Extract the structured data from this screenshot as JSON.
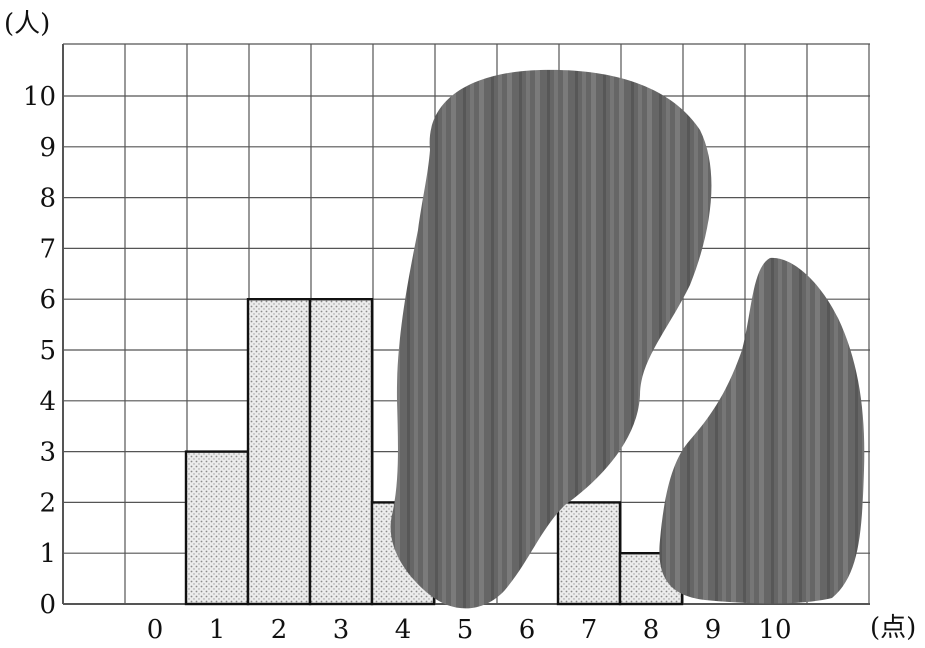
{
  "chart_data": {
    "type": "bar",
    "ylabel": "(人)",
    "xlabel": "(点)",
    "categories": [
      "0",
      "1",
      "2",
      "3",
      "4",
      "5",
      "6",
      "7",
      "8",
      "9",
      "10"
    ],
    "values": [
      0,
      3,
      6,
      6,
      2,
      null,
      null,
      2,
      1,
      null,
      null
    ],
    "hidden_categories": [
      "5",
      "6",
      "9",
      "10"
    ],
    "y_ticks": [
      "0",
      "1",
      "2",
      "3",
      "4",
      "5",
      "6",
      "7",
      "8",
      "9",
      "10"
    ],
    "ylim": [
      0,
      11
    ],
    "grid": true,
    "colors": {
      "bar_fill": "#e9e9e9",
      "bar_dots": "#8a8a8a",
      "bar_stroke": "#111111",
      "grid": "#555555",
      "ink_blot": "#666666",
      "ink_streak": "#7a7a7a"
    }
  }
}
